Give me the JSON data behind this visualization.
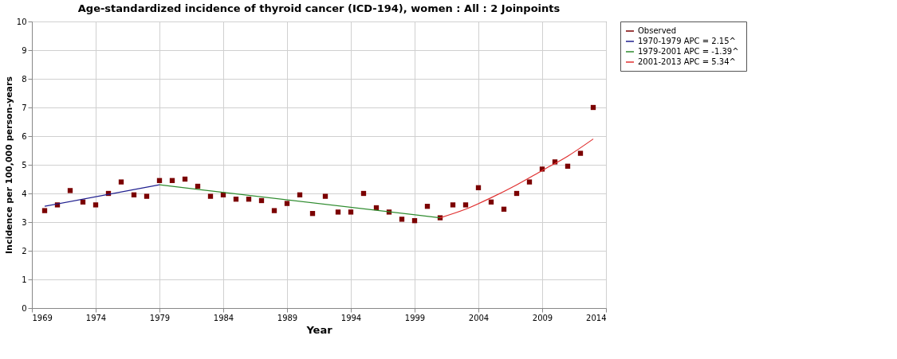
{
  "chart_data": {
    "type": "scatter",
    "title": "Age-standardized incidence of thyroid cancer (ICD-194), women : All : 2 Joinpoints",
    "xlabel": "Year",
    "ylabel": "Incidence per 100,000 person-years",
    "xlim": [
      1969,
      2014
    ],
    "xticks": [
      1969,
      1974,
      1979,
      1984,
      1989,
      1994,
      1999,
      2004,
      2009,
      2014
    ],
    "ylim": [
      0,
      10
    ],
    "yticks": [
      0,
      1,
      2,
      3,
      4,
      5,
      6,
      7,
      8,
      9,
      10
    ],
    "grid": true,
    "legend": "top right",
    "series": [
      {
        "name": "Observed",
        "marker": "square",
        "color": "#7b0000",
        "x": [
          1970,
          1971,
          1972,
          1973,
          1974,
          1975,
          1976,
          1977,
          1978,
          1979,
          1980,
          1981,
          1982,
          1983,
          1984,
          1985,
          1986,
          1987,
          1988,
          1989,
          1990,
          1991,
          1992,
          1993,
          1994,
          1995,
          1996,
          1997,
          1998,
          1999,
          2000,
          2001,
          2002,
          2003,
          2004,
          2005,
          2006,
          2007,
          2008,
          2009,
          2010,
          2011,
          2012,
          2013
        ],
        "values": [
          3.4,
          3.6,
          4.1,
          3.7,
          3.6,
          4.0,
          4.4,
          3.95,
          3.9,
          4.45,
          4.45,
          4.5,
          4.25,
          3.9,
          3.95,
          3.8,
          3.8,
          3.75,
          3.4,
          3.65,
          3.95,
          3.3,
          3.9,
          3.35,
          3.35,
          4.0,
          3.5,
          3.35,
          3.1,
          3.05,
          3.55,
          3.15,
          3.6,
          3.6,
          4.2,
          3.7,
          3.45,
          4.0,
          4.4,
          4.85,
          5.1,
          4.95,
          5.4,
          7.0
        ]
      },
      {
        "name": "1970-1979 APC  =  2.15^",
        "type": "line",
        "color": "#1f1f8f",
        "x": [
          1970,
          1979
        ],
        "values": [
          3.55,
          4.3
        ]
      },
      {
        "name": "1979-2001 APC  = -1.39^",
        "type": "line",
        "color": "#2e8b2e",
        "x": [
          1979,
          2001
        ],
        "values": [
          4.3,
          3.15
        ]
      },
      {
        "name": "2001-2013 APC  =  5.34^",
        "type": "line",
        "color": "#e03030",
        "x": [
          2001,
          2003,
          2005,
          2007,
          2009,
          2011,
          2013
        ],
        "values": [
          3.15,
          3.45,
          3.85,
          4.3,
          4.8,
          5.3,
          5.9
        ]
      }
    ]
  }
}
